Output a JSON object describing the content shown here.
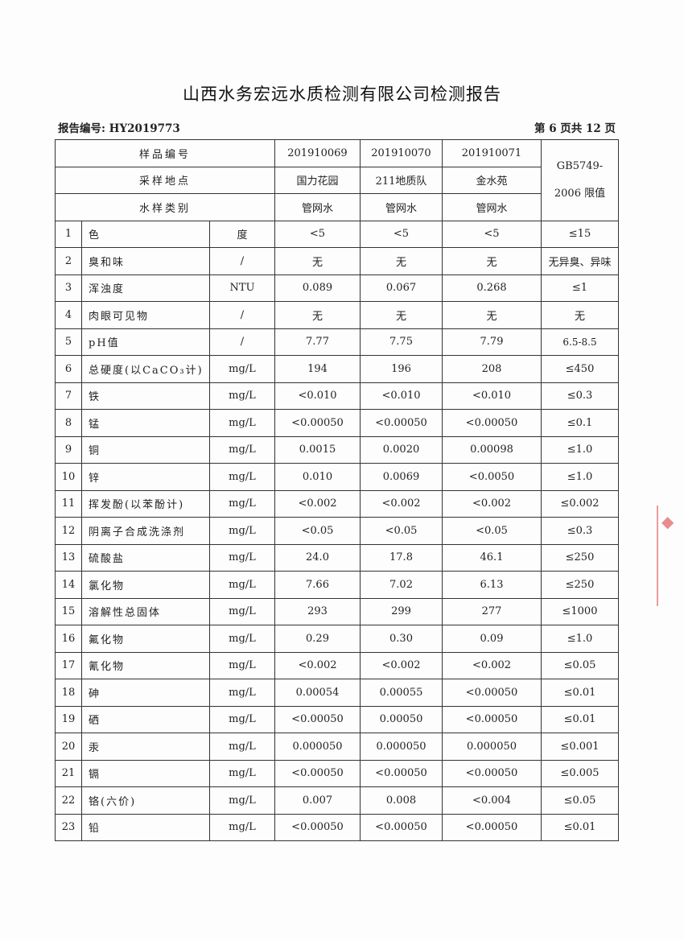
{
  "title": "山西水务宏远水质检测有限公司检测报告",
  "report_no": "报告编号: HY2019773",
  "page_info": "第 6 页共 12 页",
  "header": {
    "sample_id_label": "样品编号",
    "location_label": "采样地点",
    "type_label": "水样类别",
    "limit_label_1": "GB5749-",
    "limit_label_2": "2006 限值",
    "samples": [
      {
        "id": "201910069",
        "location": "国力花园",
        "type": "管网水"
      },
      {
        "id": "201910070",
        "location": "211地质队",
        "type": "管网水"
      },
      {
        "id": "201910071",
        "location": "金水苑",
        "type": "管网水"
      }
    ]
  },
  "rows": [
    {
      "no": "1",
      "item": "色",
      "unit": "度",
      "v1": "<5",
      "v2": "<5",
      "v3": "<5",
      "limit": "≤15"
    },
    {
      "no": "2",
      "item": "臭和味",
      "unit": "/",
      "v1": "无",
      "v2": "无",
      "v3": "无",
      "limit": "无异臭、异味"
    },
    {
      "no": "3",
      "item": "浑浊度",
      "unit": "NTU",
      "v1": "0.089",
      "v2": "0.067",
      "v3": "0.268",
      "limit": "≤1"
    },
    {
      "no": "4",
      "item": "肉眼可见物",
      "unit": "/",
      "v1": "无",
      "v2": "无",
      "v3": "无",
      "limit": "无"
    },
    {
      "no": "5",
      "item": "pH值",
      "unit": "/",
      "v1": "7.77",
      "v2": "7.75",
      "v3": "7.79",
      "limit": "6.5-8.5"
    },
    {
      "no": "6",
      "item": "总硬度(以CaCO₃计)",
      "unit": "mg/L",
      "v1": "194",
      "v2": "196",
      "v3": "208",
      "limit": "≤450"
    },
    {
      "no": "7",
      "item": "铁",
      "unit": "mg/L",
      "v1": "<0.010",
      "v2": "<0.010",
      "v3": "<0.010",
      "limit": "≤0.3"
    },
    {
      "no": "8",
      "item": "锰",
      "unit": "mg/L",
      "v1": "<0.00050",
      "v2": "<0.00050",
      "v3": "<0.00050",
      "limit": "≤0.1"
    },
    {
      "no": "9",
      "item": "铜",
      "unit": "mg/L",
      "v1": "0.0015",
      "v2": "0.0020",
      "v3": "0.00098",
      "limit": "≤1.0"
    },
    {
      "no": "10",
      "item": "锌",
      "unit": "mg/L",
      "v1": "0.010",
      "v2": "0.0069",
      "v3": "<0.0050",
      "limit": "≤1.0"
    },
    {
      "no": "11",
      "item": "挥发酚(以苯酚计)",
      "unit": "mg/L",
      "v1": "<0.002",
      "v2": "<0.002",
      "v3": "<0.002",
      "limit": "≤0.002"
    },
    {
      "no": "12",
      "item": "阴离子合成洗涤剂",
      "unit": "mg/L",
      "v1": "<0.05",
      "v2": "<0.05",
      "v3": "<0.05",
      "limit": "≤0.3"
    },
    {
      "no": "13",
      "item": "硫酸盐",
      "unit": "mg/L",
      "v1": "24.0",
      "v2": "17.8",
      "v3": "46.1",
      "limit": "≤250"
    },
    {
      "no": "14",
      "item": "氯化物",
      "unit": "mg/L",
      "v1": "7.66",
      "v2": "7.02",
      "v3": "6.13",
      "limit": "≤250"
    },
    {
      "no": "15",
      "item": "溶解性总固体",
      "unit": "mg/L",
      "v1": "293",
      "v2": "299",
      "v3": "277",
      "limit": "≤1000"
    },
    {
      "no": "16",
      "item": "氟化物",
      "unit": "mg/L",
      "v1": "0.29",
      "v2": "0.30",
      "v3": "0.09",
      "limit": "≤1.0"
    },
    {
      "no": "17",
      "item": "氰化物",
      "unit": "mg/L",
      "v1": "<0.002",
      "v2": "<0.002",
      "v3": "<0.002",
      "limit": "≤0.05"
    },
    {
      "no": "18",
      "item": "砷",
      "unit": "mg/L",
      "v1": "0.00054",
      "v2": "0.00055",
      "v3": "<0.00050",
      "limit": "≤0.01"
    },
    {
      "no": "19",
      "item": "硒",
      "unit": "mg/L",
      "v1": "<0.00050",
      "v2": "0.00050",
      "v3": "<0.00050",
      "limit": "≤0.01"
    },
    {
      "no": "20",
      "item": "汞",
      "unit": "mg/L",
      "v1": "0.000050",
      "v2": "0.000050",
      "v3": "0.000050",
      "limit": "≤0.001"
    },
    {
      "no": "21",
      "item": "镉",
      "unit": "mg/L",
      "v1": "<0.00050",
      "v2": "<0.00050",
      "v3": "<0.00050",
      "limit": "≤0.005"
    },
    {
      "no": "22",
      "item": "铬(六价)",
      "unit": "mg/L",
      "v1": "0.007",
      "v2": "0.008",
      "v3": "<0.004",
      "limit": "≤0.05"
    },
    {
      "no": "23",
      "item": "铅",
      "unit": "mg/L",
      "v1": "<0.00050",
      "v2": "<0.00050",
      "v3": "<0.00050",
      "limit": "≤0.01"
    }
  ],
  "stamp_color": "#d73232"
}
